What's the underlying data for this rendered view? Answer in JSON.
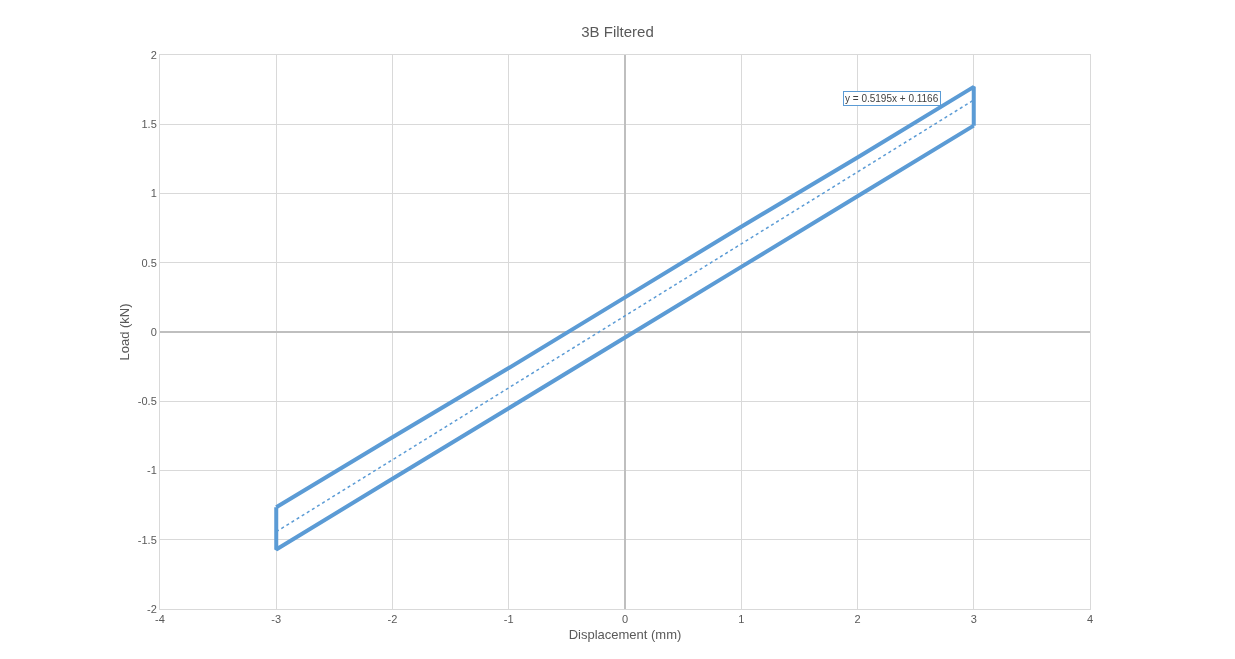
{
  "chart_data": {
    "type": "line",
    "title": "3B Filtered",
    "xlabel": "Displacement (mm)",
    "ylabel": "Load (kN)",
    "series": [
      {
        "color": "#5b9bd5",
        "x": [
          -3,
          -3,
          -2,
          -1,
          0,
          1,
          2,
          3
        ],
        "values": [
          -1.265,
          -1.57,
          -1.06,
          -0.55,
          -0.04,
          0.47,
          0.98,
          1.49
        ]
      },
      {
        "color": "#5b9bd5",
        "x": [
          3,
          3,
          2,
          1,
          0,
          -1,
          -2,
          -3
        ],
        "values": [
          1.49,
          1.77,
          1.26,
          0.76,
          0.25,
          -0.26,
          -0.76,
          -1.265
        ]
      },
      {
        "type": "line",
        "line_style": "dotted",
        "color": "#5b9bd5",
        "x": [
          -3,
          3
        ],
        "values": [
          -1.442,
          1.675
        ]
      }
    ],
    "annotations": [
      "y = 0.5195x + 0.1166"
    ],
    "xlim": [
      -4,
      4
    ],
    "xticks": [
      -4,
      -3,
      -2,
      -1,
      0,
      1,
      2,
      3,
      4
    ],
    "ylim": [
      -2,
      2
    ],
    "yticks": [
      -2,
      -1.5,
      -1,
      -0.5,
      0,
      0.5,
      1,
      1.5,
      2
    ],
    "grid": true,
    "marker": "none",
    "line_style": "solid"
  }
}
